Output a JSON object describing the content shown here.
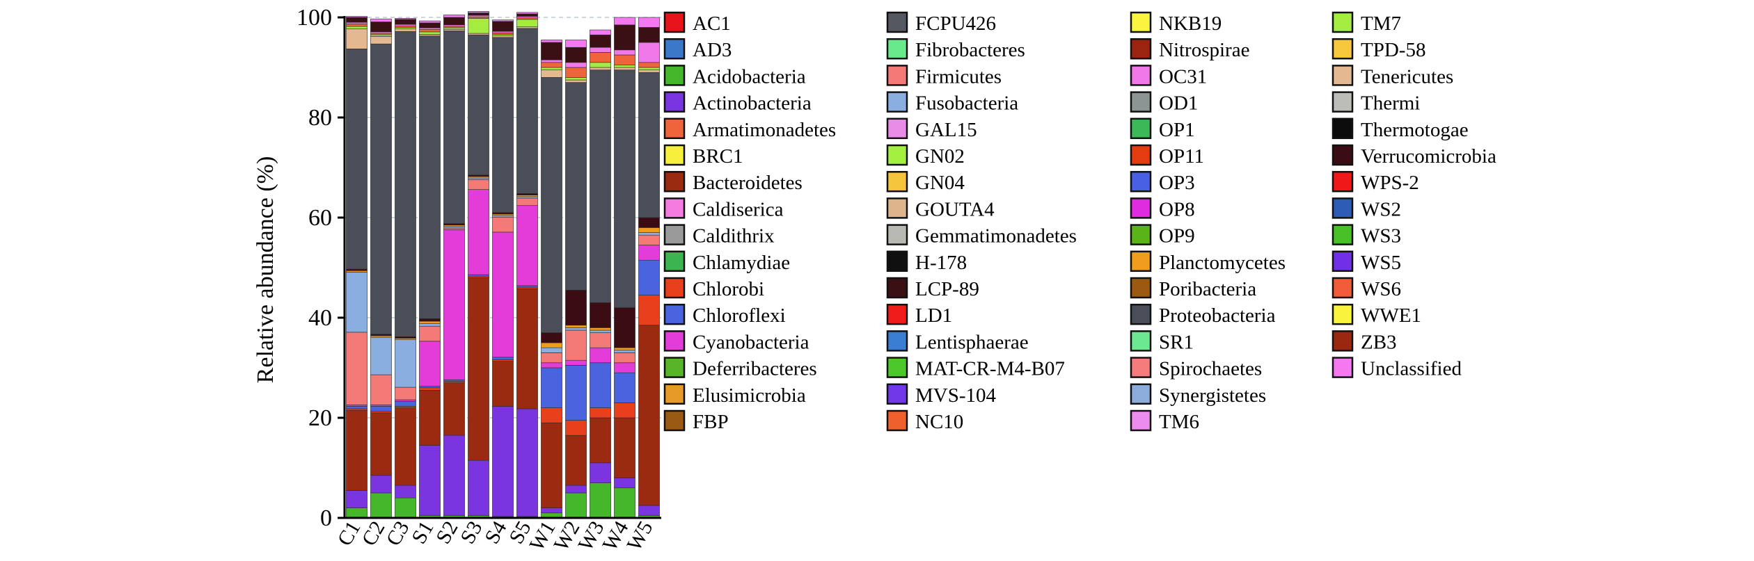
{
  "chart_data": {
    "type": "bar",
    "stacked": true,
    "ylabel": "Relative abundance (%)",
    "xlabel": "",
    "ylim": [
      0,
      100
    ],
    "yticks": [
      0,
      20,
      40,
      60,
      80,
      100
    ],
    "grid": "horizontal dashed",
    "legend_position": "right",
    "categories": [
      "C1",
      "C2",
      "C3",
      "S1",
      "S2",
      "S3",
      "S4",
      "S5",
      "W1",
      "W2",
      "W3",
      "W4",
      "W5"
    ],
    "legend": [
      {
        "name": "AC1",
        "color": "#e8141c"
      },
      {
        "name": "AD3",
        "color": "#3a78c9"
      },
      {
        "name": "Acidobacteria",
        "color": "#44b82a"
      },
      {
        "name": "Actinobacteria",
        "color": "#7b35e0"
      },
      {
        "name": "Armatimonadetes",
        "color": "#f0643c"
      },
      {
        "name": "BRC1",
        "color": "#f4f03c"
      },
      {
        "name": "Bacteroidetes",
        "color": "#9a2a10"
      },
      {
        "name": "Caldiserica",
        "color": "#f47ce0"
      },
      {
        "name": "Caldithrix",
        "color": "#9a9a9a"
      },
      {
        "name": "Chlamydiae",
        "color": "#3cb450"
      },
      {
        "name": "Chlorobi",
        "color": "#e8401c"
      },
      {
        "name": "Chloroflexi",
        "color": "#4a64e0"
      },
      {
        "name": "Cyanobacteria",
        "color": "#e43cd8"
      },
      {
        "name": "Deferribacteres",
        "color": "#58b428"
      },
      {
        "name": "Elusimicrobia",
        "color": "#e89a28"
      },
      {
        "name": "FBP",
        "color": "#9a5a14"
      },
      {
        "name": "FCPU426",
        "color": "#555860"
      },
      {
        "name": "Fibrobacteres",
        "color": "#6ae88c"
      },
      {
        "name": "Firmicutes",
        "color": "#f47a78"
      },
      {
        "name": "Fusobacteria",
        "color": "#8aaee0"
      },
      {
        "name": "GAL15",
        "color": "#e98ce8"
      },
      {
        "name": "GN02",
        "color": "#a4f040"
      },
      {
        "name": "GN04",
        "color": "#f4c43c"
      },
      {
        "name": "GOUTA4",
        "color": "#ddb48c"
      },
      {
        "name": "Gemmatimonadetes",
        "color": "#b9b9b4"
      },
      {
        "name": "H-178",
        "color": "#101010"
      },
      {
        "name": "LCP-89",
        "color": "#3a1014"
      },
      {
        "name": "LD1",
        "color": "#f01c1c"
      },
      {
        "name": "Lentisphaerae",
        "color": "#3a7ed4"
      },
      {
        "name": "MAT-CR-M4-B07",
        "color": "#4cc82c"
      },
      {
        "name": "MVS-104",
        "color": "#7038e8"
      },
      {
        "name": "NC10",
        "color": "#f0602c"
      },
      {
        "name": "NKB19",
        "color": "#f8f440"
      },
      {
        "name": "Nitrospirae",
        "color": "#9a2410"
      },
      {
        "name": "OC31",
        "color": "#f078e8"
      },
      {
        "name": "OD1",
        "color": "#8c9494"
      },
      {
        "name": "OP1",
        "color": "#3cb858"
      },
      {
        "name": "OP11",
        "color": "#e43c10"
      },
      {
        "name": "OP3",
        "color": "#4a60e4"
      },
      {
        "name": "OP8",
        "color": "#e02ce0"
      },
      {
        "name": "OP9",
        "color": "#5ab418"
      },
      {
        "name": "Planctomycetes",
        "color": "#f09c1c"
      },
      {
        "name": "Poribacteria",
        "color": "#9c5a10"
      },
      {
        "name": "Proteobacteria",
        "color": "#4a4e58"
      },
      {
        "name": "SR1",
        "color": "#6ce890"
      },
      {
        "name": "Spirochaetes",
        "color": "#f47c7c"
      },
      {
        "name": "Synergistetes",
        "color": "#8cacdc"
      },
      {
        "name": "TM6",
        "color": "#ec8cec"
      },
      {
        "name": "TM7",
        "color": "#a4ec40"
      },
      {
        "name": "TPD-58",
        "color": "#f8c83c"
      },
      {
        "name": "Tenericutes",
        "color": "#e4b890"
      },
      {
        "name": "Thermi",
        "color": "#bcbcb8"
      },
      {
        "name": "Thermotogae",
        "color": "#0c0c0c"
      },
      {
        "name": "Verrucomicrobia",
        "color": "#3c0c14"
      },
      {
        "name": "WPS-2",
        "color": "#f01818"
      },
      {
        "name": "WS2",
        "color": "#2c5cb4"
      },
      {
        "name": "WS3",
        "color": "#48c028"
      },
      {
        "name": "WS5",
        "color": "#7030e8"
      },
      {
        "name": "WS6",
        "color": "#f05c38"
      },
      {
        "name": "WWE1",
        "color": "#f8f43c"
      },
      {
        "name": "ZB3",
        "color": "#9a2810"
      },
      {
        "name": "Unclassified",
        "color": "#f478f0"
      }
    ],
    "series": [
      {
        "name": "Acidobacteria",
        "values": [
          2.0,
          5.0,
          4.0,
          0.5,
          0.5,
          0.5,
          0.3,
          0.3,
          1.0,
          5.0,
          7.0,
          6.0,
          0.5
        ]
      },
      {
        "name": "Actinobacteria",
        "values": [
          3.5,
          3.5,
          2.5,
          14.0,
          16.0,
          11.0,
          22.0,
          21.5,
          1.0,
          1.5,
          4.0,
          2.0,
          2.0
        ]
      },
      {
        "name": "Bacteroidetes",
        "values": [
          16.0,
          12.5,
          15.5,
          11.0,
          10.5,
          36.5,
          9.0,
          24.0,
          17.0,
          10.0,
          9.0,
          12.0,
          36.0
        ]
      },
      {
        "name": "Chlorobi",
        "values": [
          0.3,
          0.3,
          0.3,
          0.5,
          0.3,
          0.3,
          0.3,
          0.3,
          3.0,
          3.0,
          2.0,
          3.0,
          6.0
        ]
      },
      {
        "name": "Chloroflexi",
        "values": [
          0.5,
          1.0,
          1.0,
          0.3,
          0.3,
          0.3,
          0.5,
          0.3,
          8.0,
          11.0,
          9.0,
          6.0,
          7.0
        ]
      },
      {
        "name": "Cyanobacteria",
        "values": [
          0.3,
          0.3,
          0.3,
          9.0,
          30.0,
          17.0,
          25.0,
          16.0,
          1.0,
          1.0,
          3.0,
          2.0,
          3.0
        ]
      },
      {
        "name": "Firmicutes",
        "values": [
          14.5,
          6.0,
          2.5,
          3.0,
          0.3,
          2.0,
          3.0,
          1.5,
          2.0,
          6.0,
          3.0,
          2.0,
          2.0
        ]
      },
      {
        "name": "Fusobacteria",
        "values": [
          12.0,
          7.5,
          9.5,
          0.5,
          0.3,
          0.3,
          0.3,
          0.3,
          1.0,
          0.5,
          0.5,
          0.5,
          0.5
        ]
      },
      {
        "name": "Planctomycetes",
        "values": [
          0.3,
          0.3,
          0.3,
          0.5,
          0.3,
          0.3,
          0.3,
          0.3,
          1.0,
          0.5,
          0.5,
          0.5,
          1.0
        ]
      },
      {
        "name": "Verrucomicrobia",
        "values": [
          0.3,
          0.3,
          0.3,
          0.5,
          0.3,
          0.3,
          0.3,
          0.3,
          2.0,
          7.0,
          5.0,
          8.0,
          2.0
        ]
      },
      {
        "name": "Proteobacteria",
        "values": [
          44.0,
          58.0,
          61.0,
          56.5,
          38.5,
          28.0,
          35.0,
          33.0,
          51.0,
          41.5,
          46.5,
          47.5,
          29.0
        ]
      },
      {
        "name": "Tenericutes",
        "values": [
          4.0,
          1.5,
          0.5,
          0.3,
          0.3,
          0.3,
          0.3,
          0.3,
          1.5,
          0.5,
          0.5,
          0.5,
          0.5
        ]
      },
      {
        "name": "TM7",
        "values": [
          0.5,
          0.3,
          0.3,
          0.5,
          0.3,
          3.0,
          0.3,
          1.5,
          0.5,
          0.5,
          1.0,
          0.5,
          0.5
        ]
      },
      {
        "name": "Armatimonadetes",
        "values": [
          0.5,
          0.3,
          0.3,
          0.5,
          0.3,
          0.3,
          0.3,
          0.3,
          1.0,
          2.0,
          2.0,
          2.0,
          1.0
        ]
      },
      {
        "name": "OC31",
        "values": [
          0.3,
          0.3,
          0.3,
          0.3,
          0.3,
          0.3,
          0.3,
          0.3,
          0.5,
          1.0,
          1.0,
          1.0,
          4.0
        ]
      },
      {
        "name": "LCP-89",
        "values": [
          1.0,
          2.0,
          1.0,
          1.0,
          1.5,
          0.5,
          2.0,
          0.5,
          3.5,
          3.0,
          2.5,
          5.0,
          3.0
        ]
      },
      {
        "name": "Unclassified",
        "values": [
          0.2,
          0.6,
          0.2,
          0.4,
          0.5,
          0.3,
          0.3,
          0.3,
          0.5,
          1.5,
          1.0,
          1.5,
          2.0
        ]
      }
    ]
  }
}
